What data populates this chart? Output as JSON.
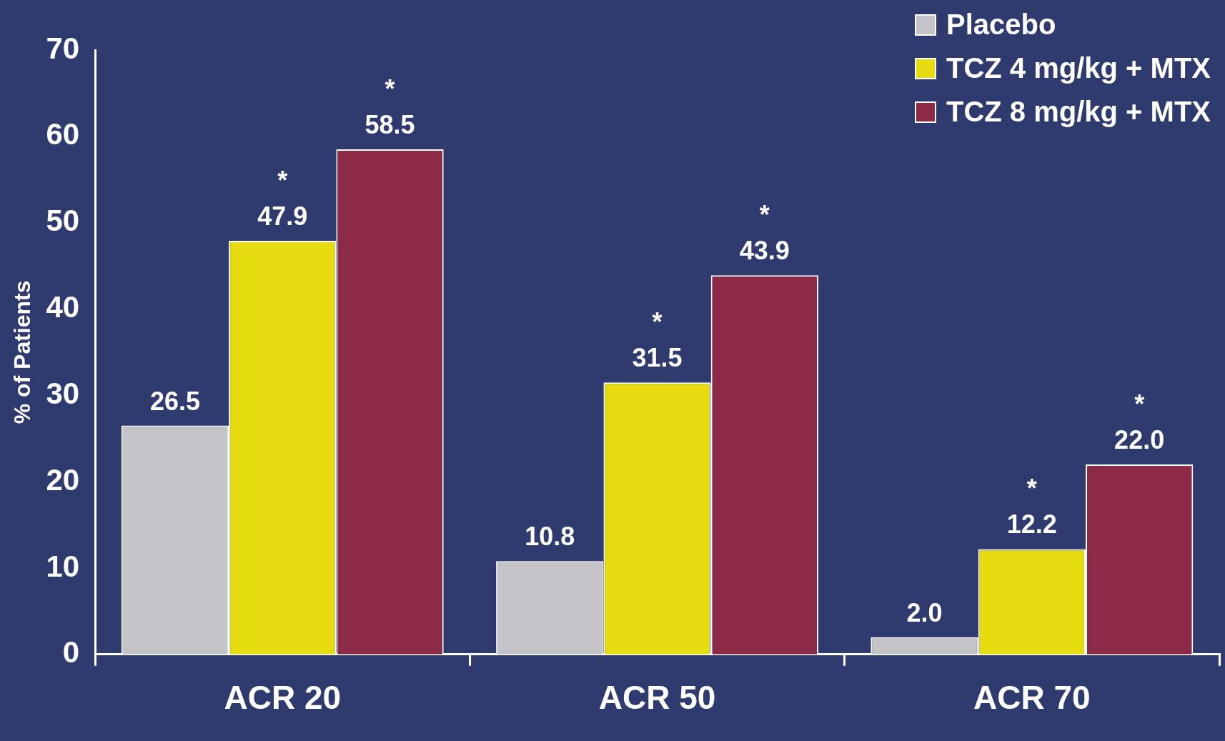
{
  "chart_data": {
    "type": "bar",
    "ylabel": "% of Patients",
    "categories": [
      "ACR 20",
      "ACR 50",
      "ACR 70"
    ],
    "series": [
      {
        "name": "Placebo",
        "color": "#c4c4c8",
        "values": [
          26.5,
          10.8,
          2.0
        ],
        "value_labels": [
          "26.5",
          "10.8",
          "2.0"
        ]
      },
      {
        "name": "TCZ 4 mg/kg + MTX",
        "color": "#e6dc10",
        "values": [
          47.9,
          31.5,
          12.2
        ],
        "value_labels": [
          "*\n47.9",
          "*\n31.5",
          "*\n12.2"
        ]
      },
      {
        "name": "TCZ 8 mg/kg + MTX",
        "color": "#8c2a48",
        "values": [
          58.5,
          43.9,
          22.0
        ],
        "value_labels": [
          "*\n58.5",
          "*\n43.9",
          "*\n22.0"
        ]
      }
    ],
    "ylim": [
      0,
      70
    ],
    "yticks": [
      0,
      10,
      20,
      30,
      40,
      50,
      60,
      70
    ],
    "grid": false,
    "legend": "top right"
  }
}
